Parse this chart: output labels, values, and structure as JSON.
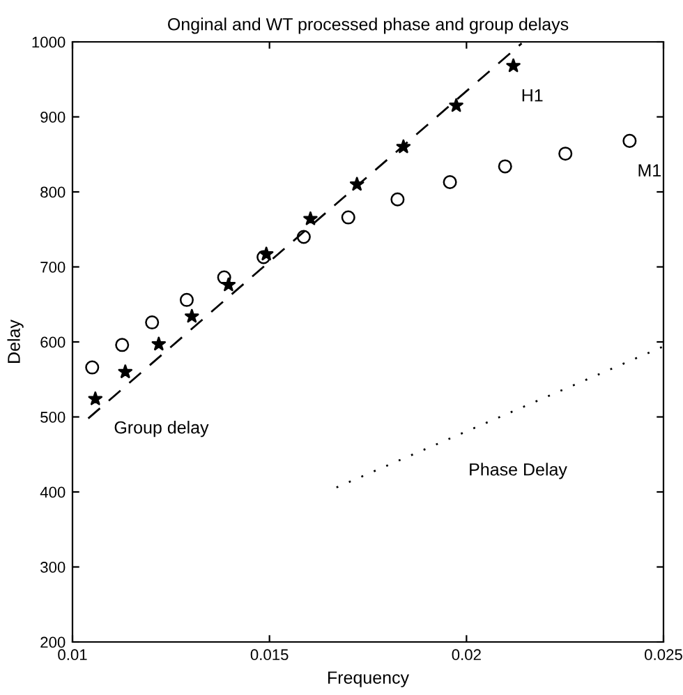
{
  "chart_data": {
    "type": "scatter",
    "title": "Onginal and WT processed phase and group delays",
    "xlabel": "Frequency",
    "ylabel": "Delay",
    "xlim": [
      0.01,
      0.025
    ],
    "xticks": [
      0.01,
      0.015,
      0.02,
      0.025
    ],
    "ylim": [
      200,
      1000
    ],
    "yticks": [
      200,
      300,
      400,
      500,
      600,
      700,
      800,
      900,
      1000
    ],
    "grid": false,
    "legend": false,
    "series": [
      {
        "name": "H1",
        "marker": "star",
        "color": "#000000",
        "x": [
          0.01058,
          0.01134,
          0.01219,
          0.01303,
          0.01396,
          0.01492,
          0.01604,
          0.01722,
          0.0184,
          0.01974,
          0.02119
        ],
        "values": [
          524,
          560,
          597,
          634,
          676,
          717,
          764,
          810,
          860,
          915,
          968
        ]
      },
      {
        "name": "M1",
        "marker": "circle",
        "color": "#000000",
        "x": [
          0.0105,
          0.01126,
          0.01202,
          0.0129,
          0.01385,
          0.01485,
          0.01587,
          0.017,
          0.01825,
          0.01958,
          0.02098,
          0.02251,
          0.02414
        ],
        "values": [
          566,
          596,
          626,
          656,
          686,
          713,
          740,
          766,
          790,
          813,
          834,
          851,
          868
        ]
      },
      {
        "type": "line",
        "line_style": "dashed",
        "marker": "none",
        "color": "#000000",
        "x": [
          0.0104,
          0.0214
        ],
        "values": [
          498,
          998
        ]
      },
      {
        "type": "line",
        "line_style": "dotted",
        "marker": "none",
        "color": "#000000",
        "x": [
          0.0167,
          0.025
        ],
        "values": [
          406,
          594
        ]
      }
    ],
    "annotations": [
      "Group delay",
      "Phase Delay"
    ]
  }
}
